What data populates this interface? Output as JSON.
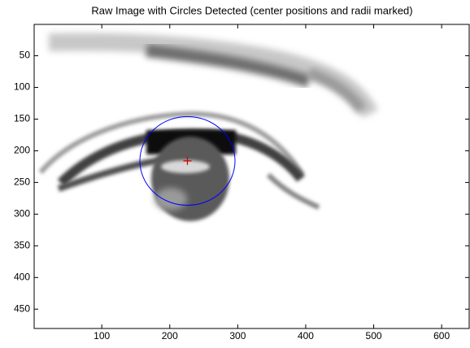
{
  "chart_data": {
    "type": "image",
    "title": "Raw Image with Circles Detected (center positions and radii marked)",
    "xlim": [
      0.5,
      640.5
    ],
    "ylim": [
      0.5,
      480.5
    ],
    "y_reversed": true,
    "xticks": [
      100,
      200,
      300,
      400,
      500,
      600
    ],
    "yticks": [
      50,
      100,
      150,
      200,
      250,
      300,
      350,
      400,
      450
    ],
    "center": {
      "x": 226,
      "y": 216
    },
    "radius": 70,
    "circle_color": "#0000ff",
    "center_color": "#cc0000"
  }
}
